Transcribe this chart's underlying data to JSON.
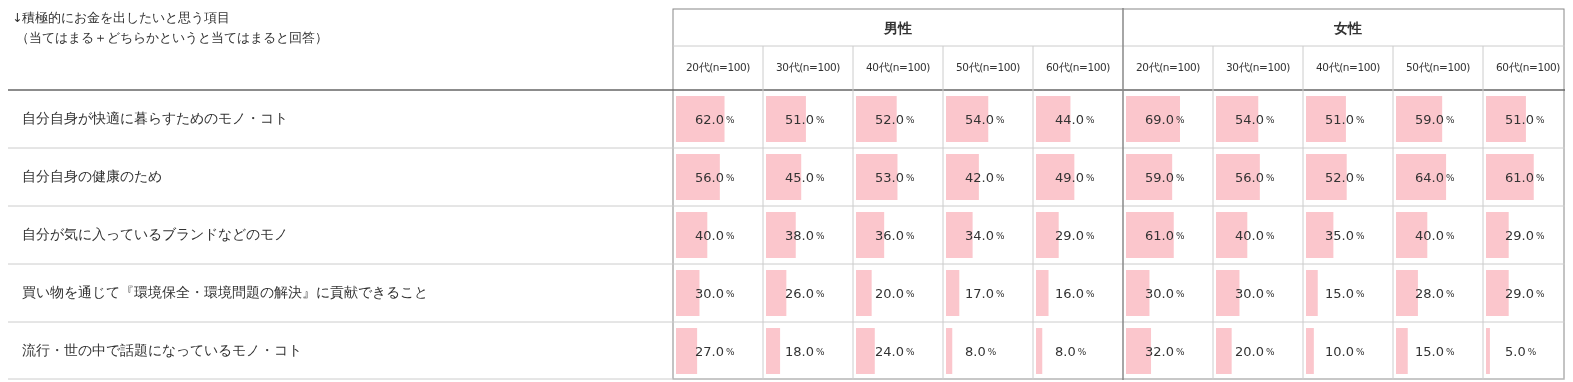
{
  "chart_data": [
    {
      "type": "bar",
      "orientation": "horizontal",
      "ylabel": "↓積極的にお金を出したいと思う項目",
      "subtitle": "（当てはまる＋どちらかというと当てはまると回答）",
      "annotations": [
        "男性"
      ],
      "title": "20代(n=100)",
      "tick_labels": "y",
      "categories": [
        "自分自身が快適に暮らすためのモノ・コト",
        "自分自身の健康のため",
        "自分が気に入っているブランドなどのモノ",
        "買い物を通じて『環境保全・環境問題の解決』に貢献できること",
        "流行・世の中で話題になっているモノ・コト"
      ],
      "color": "#fbc6cc",
      "values": [
        62,
        56,
        40,
        30,
        27
      ],
      "value_labels": [
        "62.0%",
        "56.0%",
        "40.0%",
        "30.0%",
        "27.0%"
      ]
    },
    {
      "type": "bar",
      "orientation": "horizontal",
      "title": "30代(n=100)",
      "tick_labels": false,
      "categories": [
        null,
        null,
        null,
        null,
        null
      ],
      "color": "#fbc6cc",
      "values": [
        51,
        45,
        38,
        26,
        18
      ],
      "value_labels": [
        "51.0%",
        "45.0%",
        "38.0%",
        "26.0%",
        "18.0%"
      ]
    },
    {
      "type": "bar",
      "orientation": "horizontal",
      "title": "40代(n=100)",
      "tick_labels": false,
      "categories": [
        null,
        null,
        null,
        null,
        null
      ],
      "color": "#fbc6cc",
      "values": [
        52,
        53,
        36,
        20,
        24
      ],
      "value_labels": [
        "52.0%",
        "53.0%",
        "36.0%",
        "20.0%",
        "24.0%"
      ]
    },
    {
      "type": "bar",
      "orientation": "horizontal",
      "title": "50代(n=100)",
      "tick_labels": false,
      "categories": [
        null,
        null,
        null,
        null,
        null
      ],
      "color": "#fbc6cc",
      "values": [
        54,
        42,
        34,
        17,
        8
      ],
      "value_labels": [
        "54.0%",
        "42.0%",
        "34.0%",
        "17.0%",
        "8.0%"
      ]
    },
    {
      "type": "bar",
      "orientation": "horizontal",
      "title": "60代(n=100)",
      "tick_labels": false,
      "categories": [
        null,
        null,
        null,
        null,
        null
      ],
      "color": "#fbc6cc",
      "values": [
        44,
        49,
        29,
        16,
        8
      ],
      "value_labels": [
        "44.0%",
        "49.0%",
        "29.0%",
        "16.0%",
        "8.0%"
      ]
    },
    {
      "type": "bar",
      "orientation": "horizontal",
      "annotations": [
        "女性"
      ],
      "title": "20代(n=100)",
      "tick_labels": false,
      "categories": [
        null,
        null,
        null,
        null,
        null
      ],
      "color": "#fbc6cc",
      "values": [
        69,
        59,
        61,
        30,
        32
      ],
      "value_labels": [
        "69.0%",
        "59.0%",
        "61.0%",
        "30.0%",
        "32.0%"
      ]
    },
    {
      "type": "bar",
      "orientation": "horizontal",
      "title": "30代(n=100)",
      "tick_labels": false,
      "categories": [
        null,
        null,
        null,
        null,
        null
      ],
      "color": "#fbc6cc",
      "values": [
        54,
        56,
        40,
        30,
        20
      ],
      "value_labels": [
        "54.0%",
        "56.0%",
        "40.0%",
        "30.0%",
        "20.0%"
      ]
    },
    {
      "type": "bar",
      "orientation": "horizontal",
      "title": "40代(n=100)",
      "tick_labels": false,
      "categories": [
        null,
        null,
        null,
        null,
        null
      ],
      "color": "#fbc6cc",
      "values": [
        51,
        52,
        35,
        15,
        10
      ],
      "value_labels": [
        "51.0%",
        "52.0%",
        "35.0%",
        "15.0%",
        "10.0%"
      ]
    },
    {
      "type": "bar",
      "orientation": "horizontal",
      "title": "50代(n=100)",
      "tick_labels": false,
      "categories": [
        null,
        null,
        null,
        null,
        null
      ],
      "color": "#fbc6cc",
      "values": [
        59,
        64,
        40,
        28,
        15
      ],
      "value_labels": [
        "59.0%",
        "64.0%",
        "40.0%",
        "28.0%",
        "15.0%"
      ]
    },
    {
      "type": "bar",
      "orientation": "horizontal",
      "title": "60代(n=100)",
      "tick_labels": false,
      "categories": [
        null,
        null,
        null,
        null,
        null
      ],
      "color": "#fbc6cc",
      "values": [
        51,
        61,
        29,
        29,
        5
      ],
      "value_labels": [
        "51.0%",
        "61.0%",
        "29.0%",
        "29.0%",
        "5.0%"
      ]
    }
  ]
}
